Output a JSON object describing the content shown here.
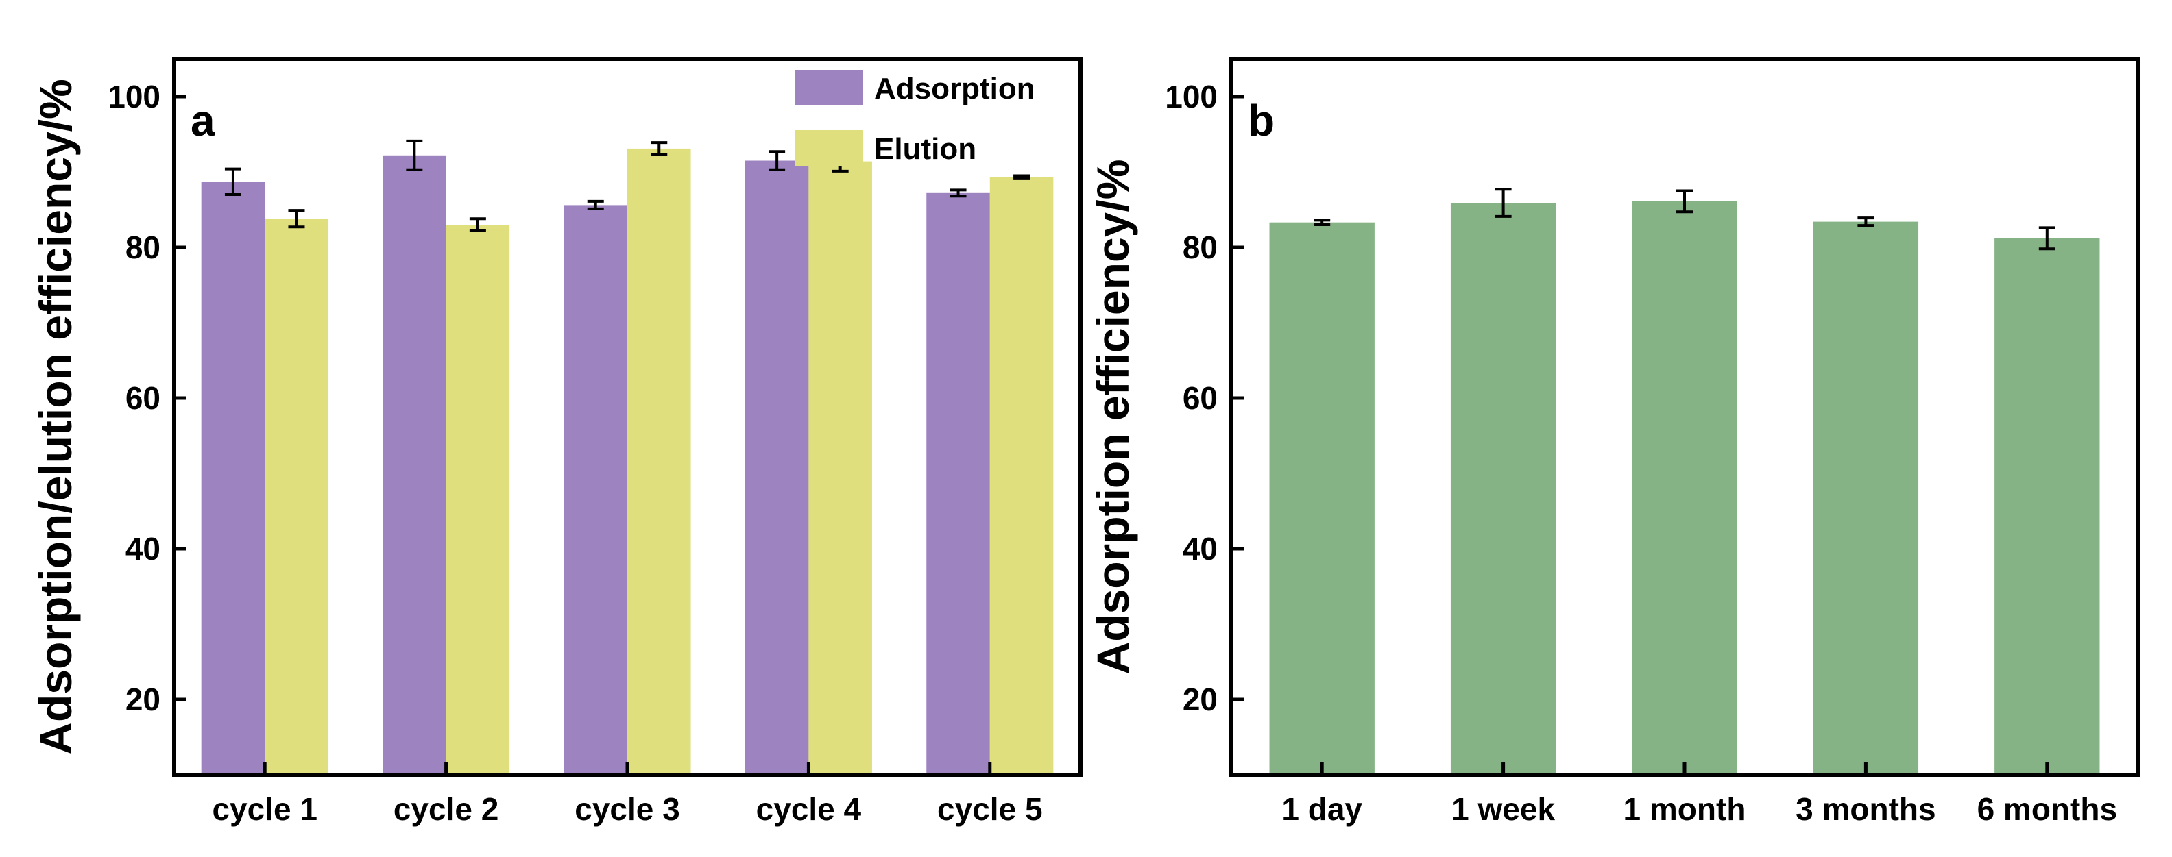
{
  "chart_data": [
    {
      "id": "a",
      "type": "bar",
      "panel_label": "a",
      "title": "",
      "xlabel": "",
      "ylabel": "Adsorption/elution efficiency/%",
      "ylim": [
        10,
        105
      ],
      "yticks": [
        20,
        40,
        60,
        80,
        100
      ],
      "categories": [
        "cycle 1",
        "cycle 2",
        "cycle 3",
        "cycle 4",
        "cycle 5"
      ],
      "series": [
        {
          "name": "Adsorption",
          "color": "#9e83c1",
          "values": [
            88.7,
            92.2,
            85.6,
            91.5,
            87.2
          ],
          "errors": [
            1.7,
            1.9,
            0.5,
            1.2,
            0.4
          ]
        },
        {
          "name": "Elution",
          "color": "#e0df7e",
          "values": [
            83.8,
            83.0,
            93.1,
            91.4,
            89.3
          ],
          "errors": [
            1.1,
            0.8,
            0.8,
            1.3,
            0.2
          ]
        }
      ],
      "legend": "top-right",
      "grid": false
    },
    {
      "id": "b",
      "type": "bar",
      "panel_label": "b",
      "title": "",
      "xlabel": "",
      "ylabel": "Adsorption efficiency/%",
      "ylim": [
        10,
        105
      ],
      "yticks": [
        20,
        40,
        60,
        80,
        100
      ],
      "categories": [
        "1 day",
        "1 week",
        "1 month",
        "3 months",
        "6 months"
      ],
      "series": [
        {
          "name": "Adsorption",
          "color": "#86b385",
          "values": [
            83.3,
            85.9,
            86.1,
            83.4,
            81.2
          ],
          "errors": [
            0.3,
            1.8,
            1.4,
            0.5,
            1.4
          ]
        }
      ],
      "legend": "none",
      "grid": false
    }
  ]
}
